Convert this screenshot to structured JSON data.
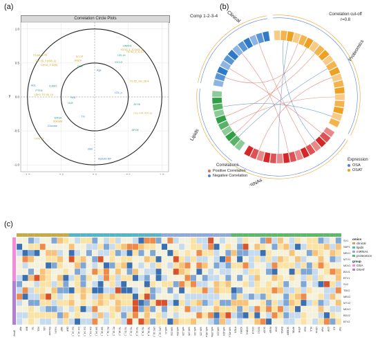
{
  "panels": {
    "a": "(a)",
    "b": "(b)",
    "c": "(c)"
  },
  "panel_a": {
    "title": "Correlation Circle Plots",
    "xlabel": "x",
    "ylabel": "y",
    "xticks": [
      "-1.0",
      "-0.5",
      "0.0",
      "0.5",
      "1.0"
    ],
    "yticks": [
      "1.0",
      "0.5",
      "0.0",
      "-0.5",
      "-1.0"
    ],
    "colors": {
      "lipids": "#d4a017",
      "mirna": "#1f9d8a",
      "clinical": "#3b7fc4",
      "proteins": "#c8b85a"
    },
    "labels": [
      {
        "text": "HNRH1",
        "x": 0.42,
        "y": 0.74,
        "group": "mirna"
      },
      {
        "text": "TG 53_1_S-1(4S_2)",
        "x": 0.38,
        "y": 0.68,
        "group": "lipids"
      },
      {
        "text": "TG 52_4_S-10",
        "x": 0.47,
        "y": 0.65,
        "group": "lipids"
      },
      {
        "text": "CEL14",
        "x": 0.34,
        "y": 0.6,
        "group": "mirna"
      },
      {
        "text": "IGCL3",
        "x": 0.3,
        "y": 0.5,
        "group": "mirna"
      },
      {
        "text": "SCCP",
        "x": -0.28,
        "y": 0.58,
        "group": "lipids"
      },
      {
        "text": "TG 60_3 PE",
        "x": -0.92,
        "y": 0.6,
        "group": "lipids"
      },
      {
        "text": "Cer 16_0 (d18_1)",
        "x": -0.88,
        "y": 0.52,
        "group": "lipids"
      },
      {
        "text": "Cer16_0 ID(9)",
        "x": -0.8,
        "y": 0.46,
        "group": "lipids"
      },
      {
        "text": "PREP",
        "x": -0.3,
        "y": 0.52,
        "group": "lipids"
      },
      {
        "text": "CNA",
        "x": -0.26,
        "y": 0.44,
        "group": "mirna"
      },
      {
        "text": "Age",
        "x": 0.03,
        "y": 0.38,
        "group": "clinical"
      },
      {
        "text": "TG 52_SH_28-4",
        "x": 0.52,
        "y": 0.22,
        "group": "lipids"
      },
      {
        "text": "LDL_c",
        "x": 0.3,
        "y": 0.05,
        "group": "clinical"
      },
      {
        "text": "HDL",
        "x": -0.95,
        "y": 0.16,
        "group": "clinical"
      },
      {
        "text": "ICAM1",
        "x": -0.68,
        "y": 0.15,
        "group": "mirna"
      },
      {
        "text": "PTEN",
        "x": -0.88,
        "y": 0.08,
        "group": "mirna"
      },
      {
        "text": "LDH1 TG 56_14",
        "x": -0.9,
        "y": 0.02,
        "group": "lipids"
      },
      {
        "text": "HLA",
        "x": -0.36,
        "y": -0.02,
        "group": "clinical"
      },
      {
        "text": "GLB",
        "x": -0.4,
        "y": -0.1,
        "group": "mirna"
      },
      {
        "text": "ATHK",
        "x": 0.58,
        "y": -0.12,
        "group": "mirna"
      },
      {
        "text": "hsa-miR-424-3p",
        "x": 0.58,
        "y": -0.25,
        "group": "proteins"
      },
      {
        "text": "TG",
        "x": -0.2,
        "y": -0.3,
        "group": "clinical"
      },
      {
        "text": "EMSA",
        "x": -0.6,
        "y": -0.32,
        "group": "mirna"
      },
      {
        "text": "SDEBM",
        "x": -0.62,
        "y": -0.37,
        "group": "lipids"
      },
      {
        "text": "Glucose",
        "x": -0.7,
        "y": -0.44,
        "group": "clinical"
      },
      {
        "text": "APOE",
        "x": 0.55,
        "y": -0.5,
        "group": "mirna"
      },
      {
        "text": "BMI",
        "x": -0.1,
        "y": -0.78,
        "group": "clinical"
      },
      {
        "text": "Systolic BP",
        "x": 0.05,
        "y": -0.92,
        "group": "clinical"
      },
      {
        "text": "Lp(a) P2",
        "x": -0.9,
        "y": -0.62,
        "group": "proteins"
      }
    ]
  },
  "panel_b": {
    "title": "Comp 1-2-3-4",
    "cutoff_title": "Correlation cut-off",
    "cutoff_value": "r=0.8",
    "sectors": {
      "clinical": "Clinical",
      "lipids": "Lipids",
      "mirnas": "miRNAs",
      "proteomics": "Proteomics"
    },
    "sector_colors": {
      "clinical": "#2f79c9",
      "lipids": "#2ea043",
      "mirnas": "#d62728",
      "proteomics": "#f0a020"
    },
    "correlations_title": "Correlations",
    "positive_label": "Positive Correlation",
    "negative_label": "Negative Correlation",
    "positive_color": "#e06c5a",
    "negative_color": "#4f83c9",
    "expression_title": "Expression",
    "osa_label": "OSA",
    "osat_label": "OSAT",
    "osa_color": "#4f7fd9",
    "osat_color": "#f0a020"
  },
  "panel_c": {
    "legend_title": "omics",
    "legend_items": [
      {
        "label": "clinical",
        "color": "#c8a94a"
      },
      {
        "label": "lipids",
        "color": "#56b4c9"
      },
      {
        "label": "miRNAs",
        "color": "#8fa8e0"
      },
      {
        "label": "proteomics",
        "color": "#5fb86a"
      }
    ],
    "group_title": "group",
    "group_items": [
      {
        "label": "OSA",
        "color": "#f28bd8"
      },
      {
        "label": "OSAT",
        "color": "#b07fd0"
      }
    ],
    "row_labels": [
      "SV1",
      "SBP1",
      "MBV1",
      "MTV1",
      "MDV1",
      "BDV1",
      "BTV1",
      "SV2",
      "TBV2",
      "MBV2",
      "MTV2",
      "MDV2",
      "BDV2",
      "BTV2"
    ],
    "col_labels": [
      "Age",
      "BMI",
      "TG",
      "HDL",
      "LDL",
      "Glucose",
      "Insulin",
      "SBP",
      "DBP",
      "Cer 16_0",
      "Cer 18_0",
      "Cer 24_0",
      "Cer 24_1",
      "SM 34_1",
      "SM 36_1",
      "PC 34_1",
      "PC 36_2",
      "TG 48_0",
      "TG 50_1",
      "TG 52_2",
      "TG 52_3",
      "TG 54_3",
      "TG 56_4",
      "LPC 16_0",
      "LPC 18_0",
      "miR-21",
      "miR-23a",
      "miR-92a",
      "miR-126",
      "miR-145",
      "miR-150",
      "miR-155",
      "miR-181a",
      "miR-199a",
      "miR-223",
      "miR-424",
      "miR-451a",
      "PTEN",
      "ICAM1",
      "HNRH1",
      "CEL14",
      "IGCL3",
      "SCCP",
      "PREP",
      "CNA",
      "EMSA",
      "SDEBM",
      "APOE",
      "ATHK",
      "GLB",
      "HLA",
      "LDHA",
      "VWF",
      "CRP",
      "IL6",
      "TNF"
    ],
    "group_column_label": "group"
  }
}
